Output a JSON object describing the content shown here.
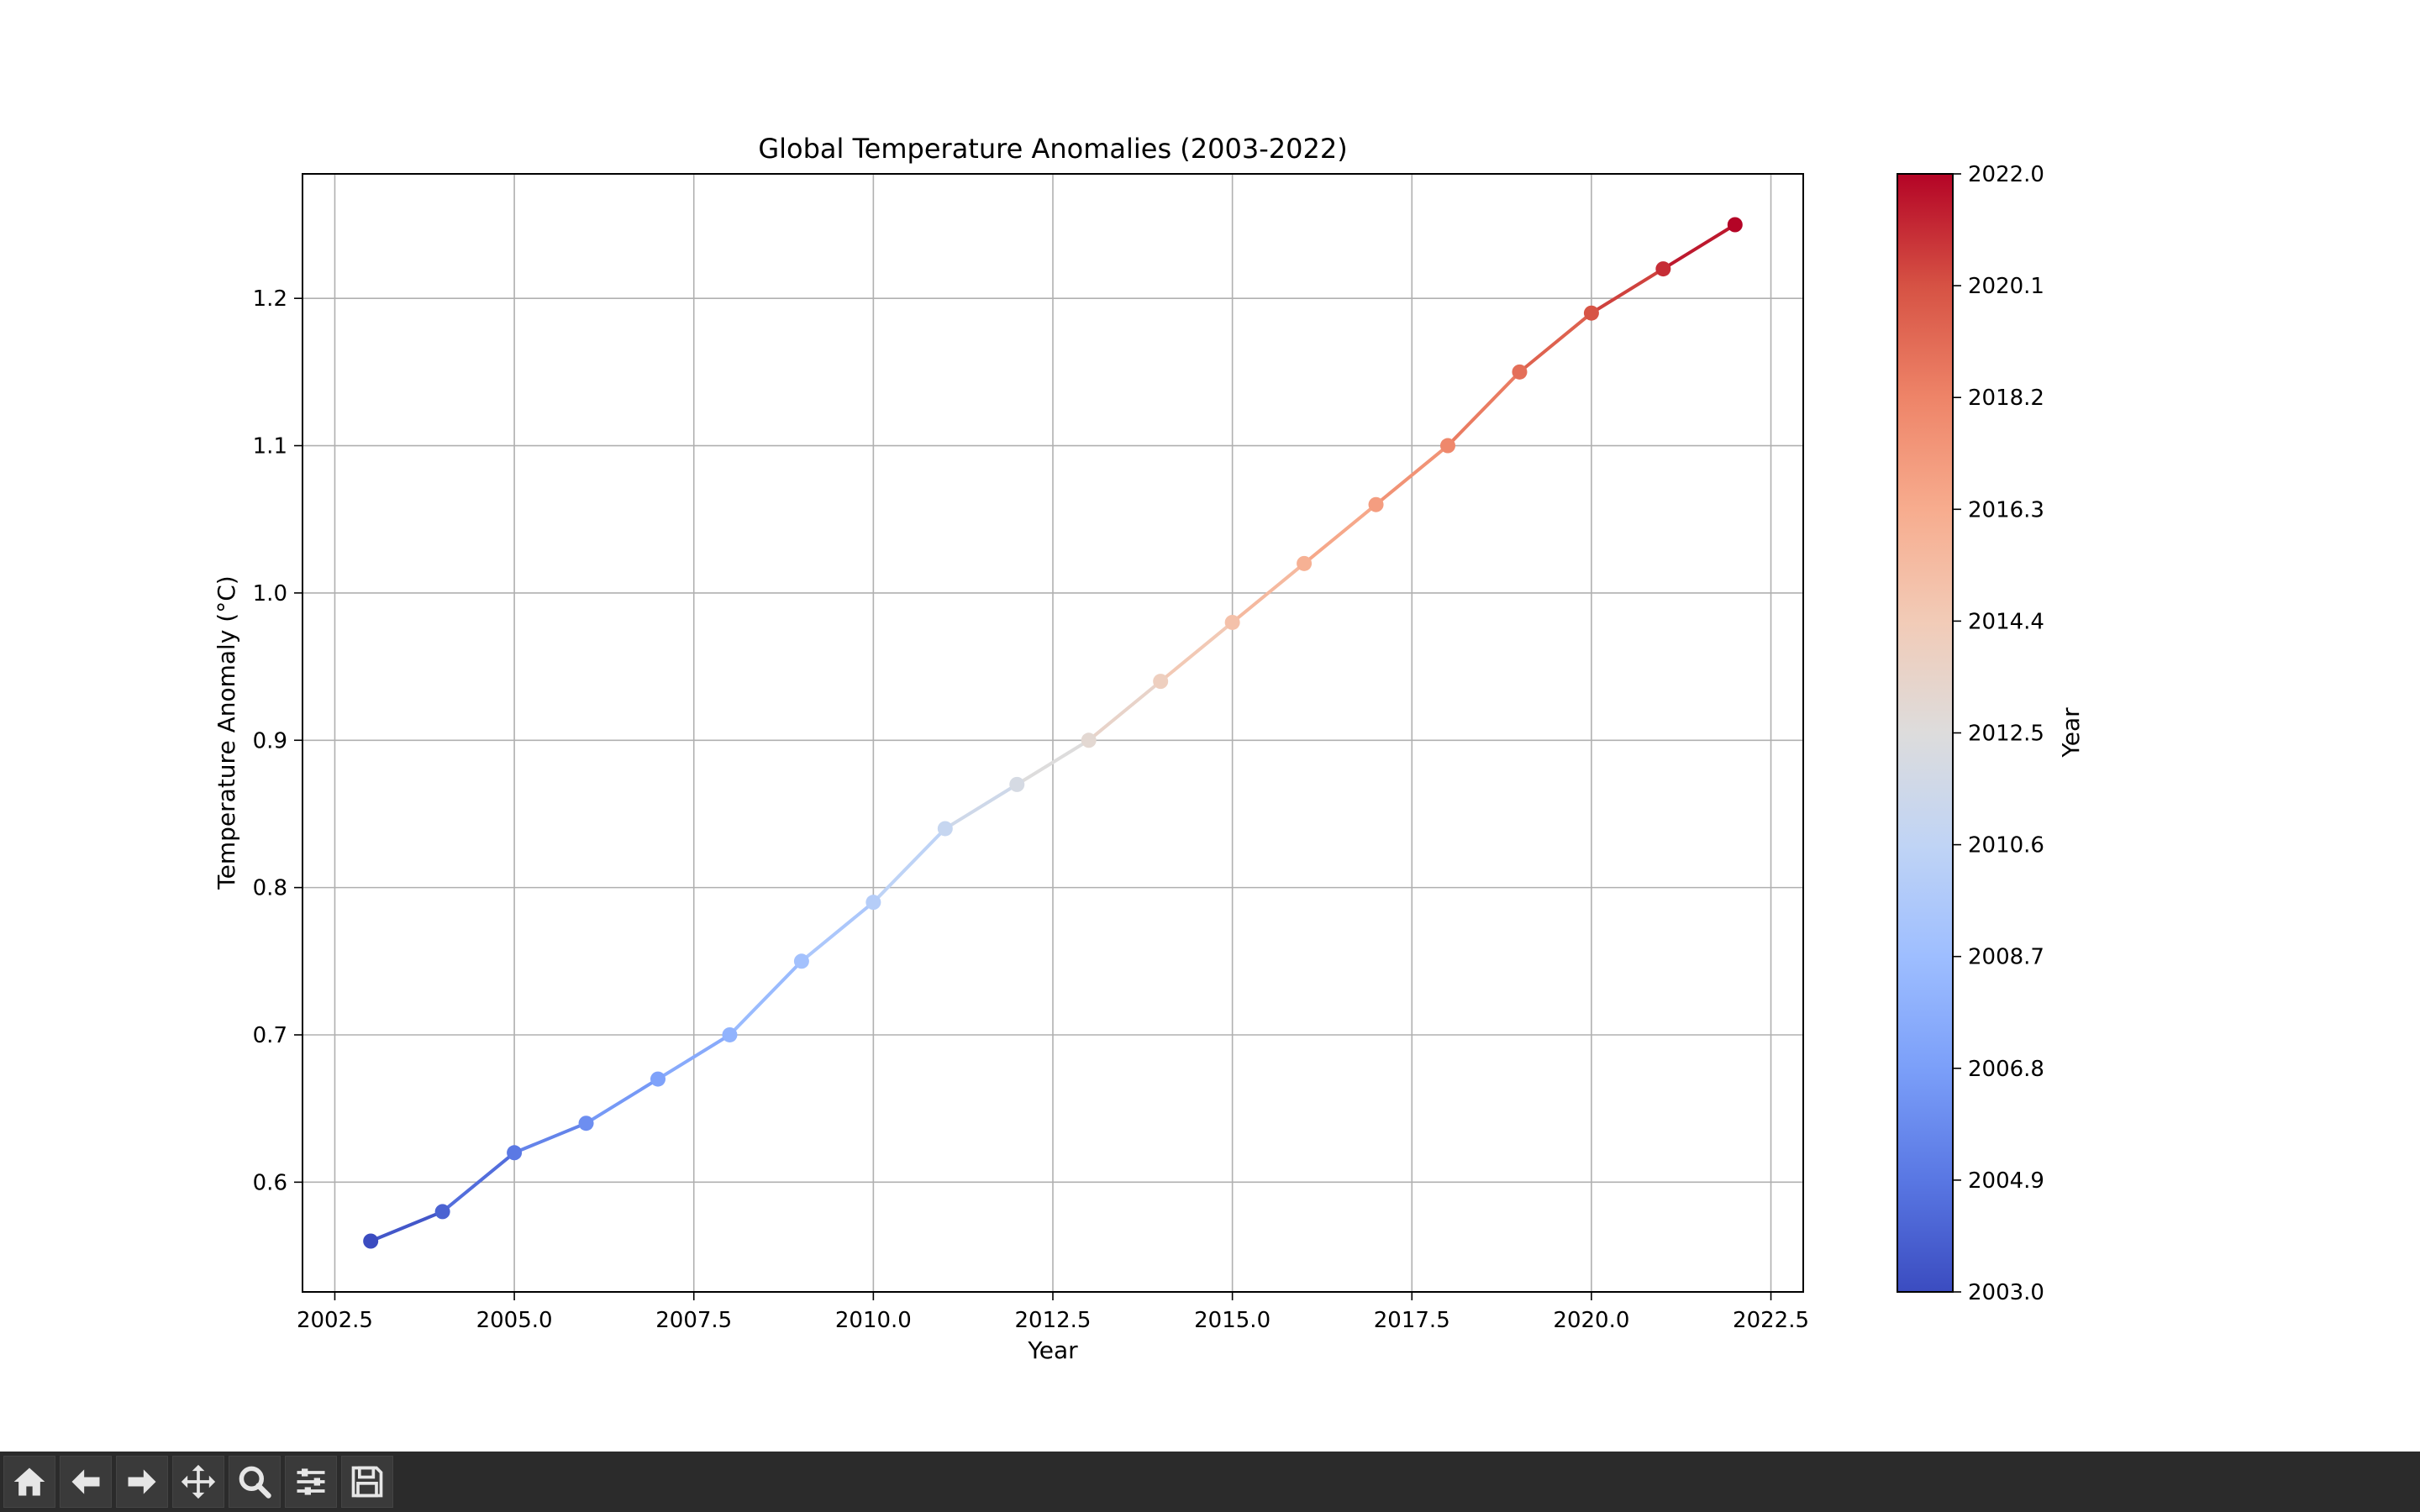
{
  "toolbar": {
    "buttons": [
      {
        "name": "home",
        "icon": "home-icon"
      },
      {
        "name": "back",
        "icon": "arrow-left-icon"
      },
      {
        "name": "forward",
        "icon": "arrow-right-icon"
      },
      {
        "name": "pan",
        "icon": "move-icon"
      },
      {
        "name": "zoom",
        "icon": "magnifier-icon"
      },
      {
        "name": "configure",
        "icon": "sliders-icon"
      },
      {
        "name": "save",
        "icon": "floppy-disk-icon"
      }
    ]
  },
  "chart_data": {
    "type": "line",
    "title": "Global Temperature Anomalies (2003-2022)",
    "xlabel": "Year",
    "ylabel": "Temperature Anomaly (°C)",
    "x": [
      2003,
      2004,
      2005,
      2006,
      2007,
      2008,
      2009,
      2010,
      2011,
      2012,
      2013,
      2014,
      2015,
      2016,
      2017,
      2018,
      2019,
      2020,
      2021,
      2022
    ],
    "y": [
      0.56,
      0.58,
      0.62,
      0.64,
      0.67,
      0.7,
      0.75,
      0.79,
      0.84,
      0.87,
      0.9,
      0.94,
      0.98,
      1.02,
      1.06,
      1.1,
      1.15,
      1.19,
      1.22,
      1.25
    ],
    "xlim": [
      2002.05,
      2022.95
    ],
    "ylim": [
      0.5255,
      1.2845
    ],
    "xticks": [
      2002.5,
      2005.0,
      2007.5,
      2010.0,
      2012.5,
      2015.0,
      2017.5,
      2020.0,
      2022.5
    ],
    "xtick_labels": [
      "2002.5",
      "2005.0",
      "2007.5",
      "2010.0",
      "2012.5",
      "2015.0",
      "2017.5",
      "2020.0",
      "2022.5"
    ],
    "yticks": [
      0.6,
      0.7,
      0.8,
      0.9,
      1.0,
      1.1,
      1.2
    ],
    "ytick_labels": [
      "0.6",
      "0.7",
      "0.8",
      "0.9",
      "1.0",
      "1.1",
      "1.2"
    ],
    "grid": true,
    "colormap": "coolwarm",
    "colorbar": {
      "label": "Year",
      "range": [
        2003.0,
        2022.0
      ],
      "ticks": [
        2003.0,
        2004.9,
        2006.8,
        2008.7,
        2010.6,
        2012.5,
        2014.4,
        2016.3,
        2018.2,
        2020.1,
        2022.0
      ],
      "tick_labels": [
        "2003.0",
        "2004.9",
        "2006.8",
        "2008.7",
        "2010.6",
        "2012.5",
        "2014.4",
        "2016.3",
        "2018.2",
        "2020.1",
        "2022.0"
      ],
      "colors": [
        "#3b4cc0",
        "#5977e3",
        "#7b9ff9",
        "#9ebeff",
        "#c0d4f5",
        "#dddcdc",
        "#f2cbb7",
        "#f7ac8e",
        "#ee8468",
        "#d65244",
        "#b40426"
      ]
    }
  }
}
